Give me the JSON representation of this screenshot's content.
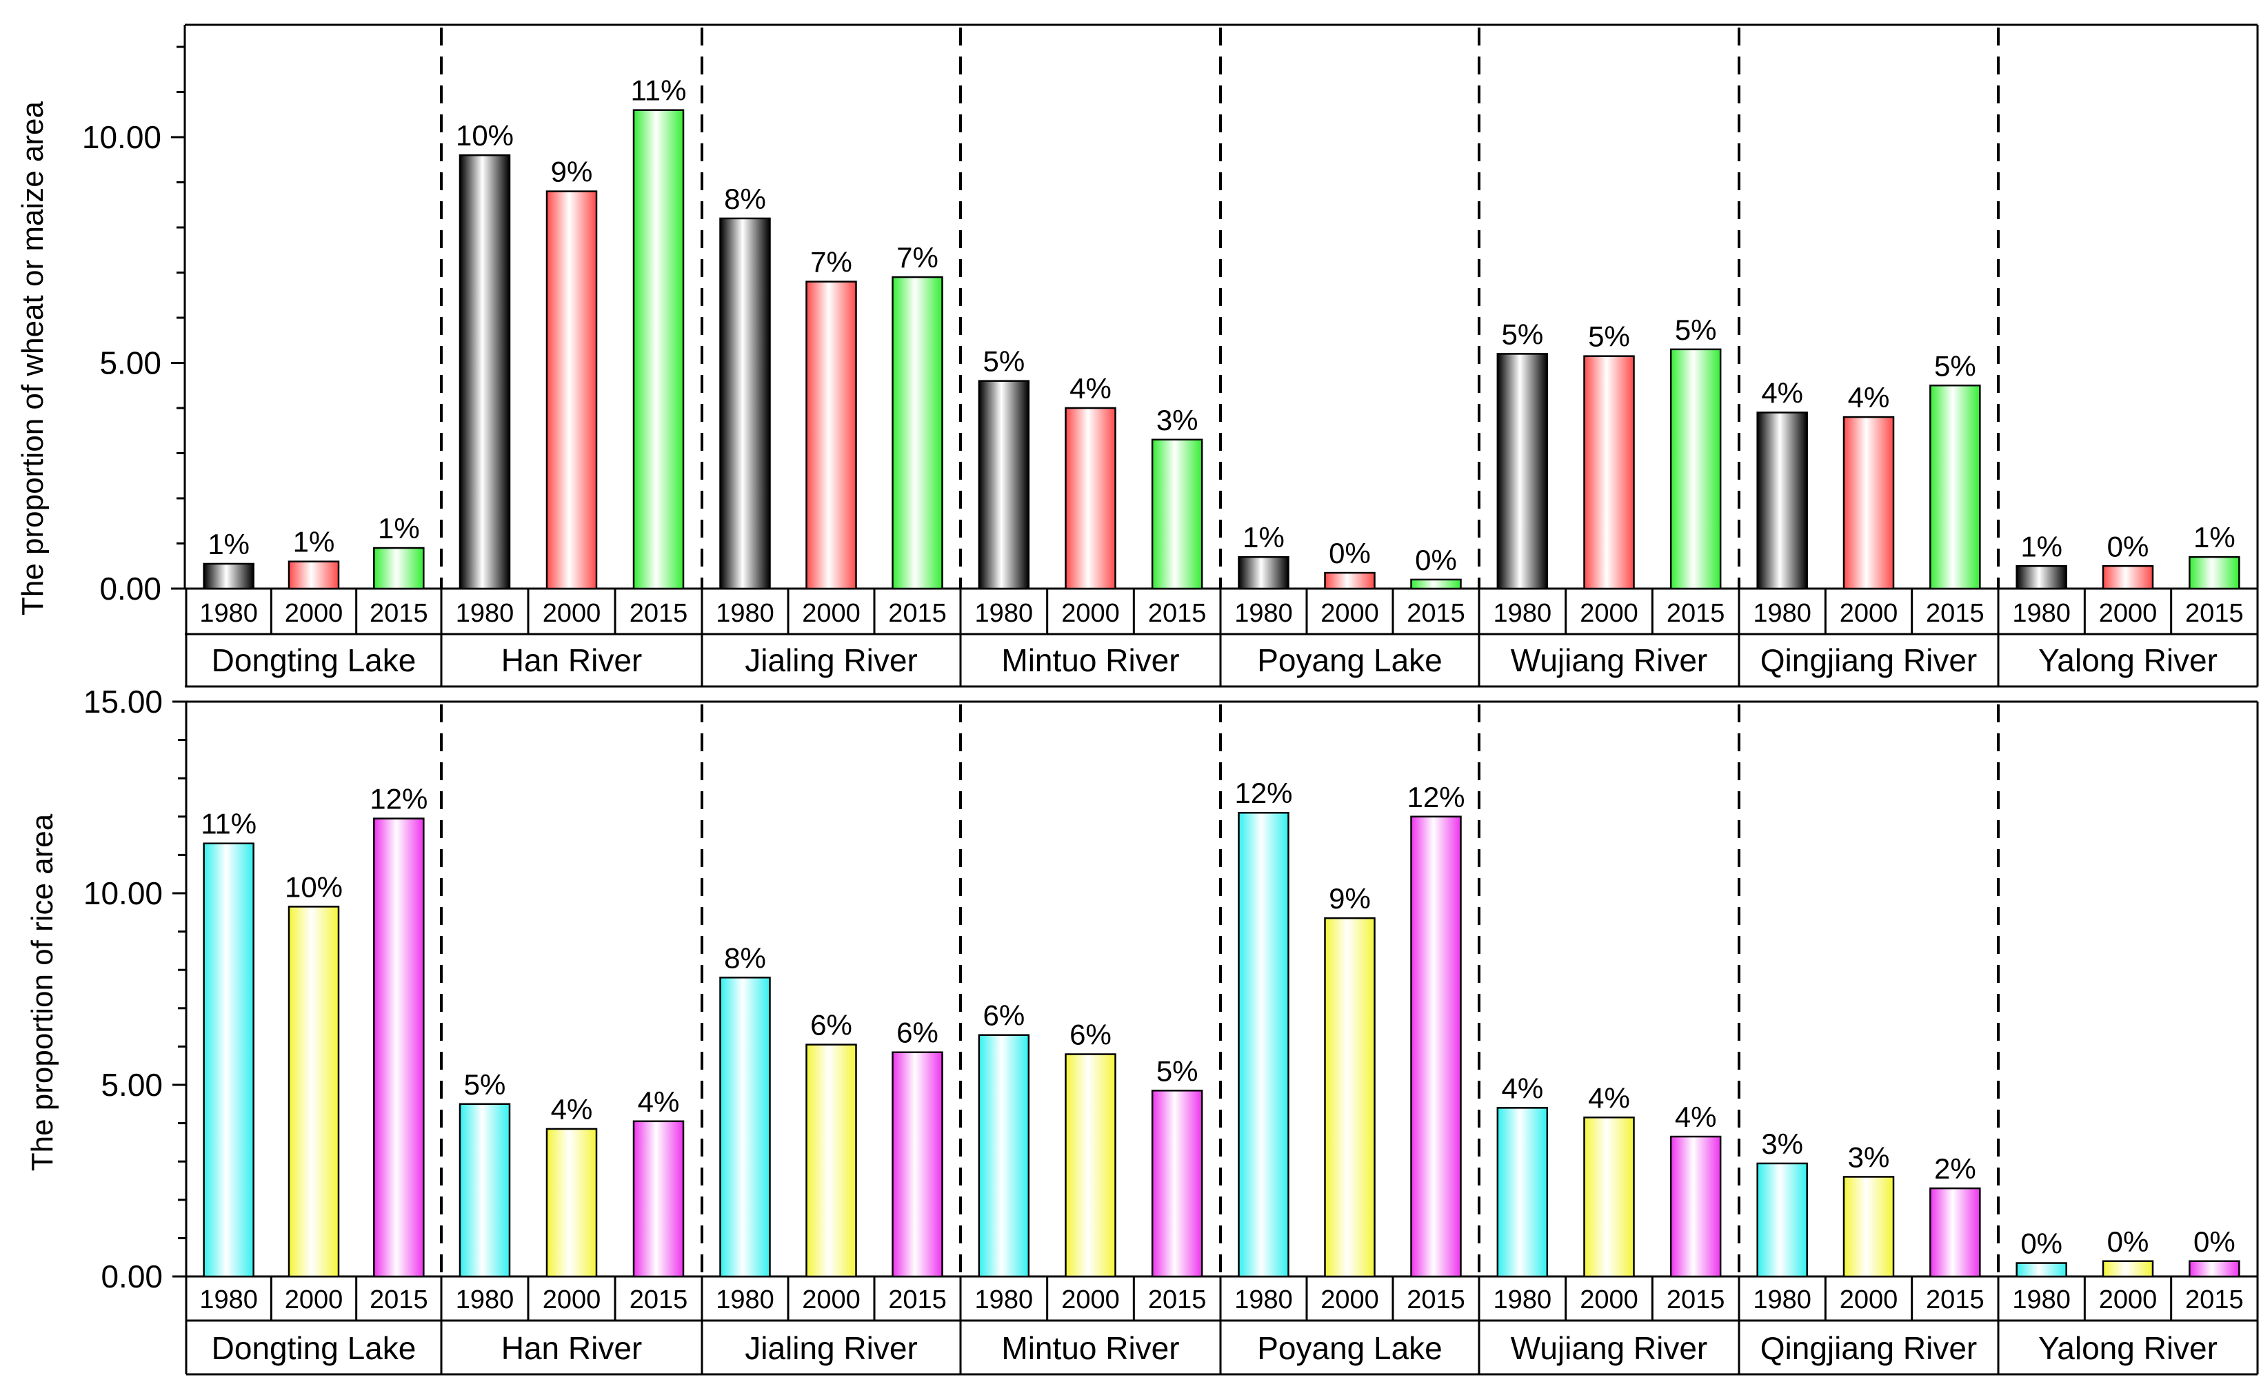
{
  "chart_data": [
    {
      "type": "bar",
      "ylabel": "The proportion of  wheat or maize area",
      "yticks": [
        "0.00",
        "5.00",
        "10.00"
      ],
      "ylim": [
        0,
        13
      ],
      "regions": [
        "Dongting Lake",
        "Han River",
        "Jialing River",
        "Mintuo River",
        "Poyang Lake",
        "Wujiang River",
        "Qingjiang River",
        "Yalong River"
      ],
      "years": [
        "1980",
        "2000",
        "2015"
      ],
      "colors": [
        "#000000",
        "#ff4a4a",
        "#33ee33"
      ],
      "values": [
        [
          0.55,
          0.6,
          0.9
        ],
        [
          9.6,
          8.8,
          10.6
        ],
        [
          8.2,
          6.8,
          6.9
        ],
        [
          4.6,
          4.0,
          3.3
        ],
        [
          0.7,
          0.35,
          0.2
        ],
        [
          5.2,
          5.15,
          5.3
        ],
        [
          3.9,
          3.8,
          4.5
        ],
        [
          0.5,
          0.5,
          0.7
        ]
      ],
      "labels": [
        [
          "1%",
          "1%",
          "1%"
        ],
        [
          "10%",
          "9%",
          "11%"
        ],
        [
          "8%",
          "7%",
          "7%"
        ],
        [
          "5%",
          "4%",
          "3%"
        ],
        [
          "1%",
          "0%",
          "0%"
        ],
        [
          "5%",
          "5%",
          "5%"
        ],
        [
          "4%",
          "4%",
          "5%"
        ],
        [
          "1%",
          "0%",
          "1%"
        ]
      ]
    },
    {
      "type": "bar",
      "ylabel": "The proportion of rice area",
      "yticks": [
        "0.00",
        "5.00",
        "10.00",
        "15.00"
      ],
      "ylim": [
        0,
        15
      ],
      "regions": [
        "Dongting Lake",
        "Han River",
        "Jialing River",
        "Mintuo River",
        "Poyang Lake",
        "Wujiang River",
        "Qingjiang River",
        "Yalong River"
      ],
      "years": [
        "1980",
        "2000",
        "2015"
      ],
      "colors": [
        "#33f0f0",
        "#f5f53a",
        "#ee33ee"
      ],
      "values": [
        [
          11.3,
          9.65,
          11.95
        ],
        [
          4.5,
          3.85,
          4.05
        ],
        [
          7.8,
          6.05,
          5.85
        ],
        [
          6.3,
          5.8,
          4.85
        ],
        [
          12.1,
          9.35,
          12.0
        ],
        [
          4.4,
          4.15,
          3.65
        ],
        [
          2.95,
          2.6,
          2.3
        ],
        [
          0.35,
          0.4,
          0.4
        ]
      ],
      "labels": [
        [
          "11%",
          "10%",
          "12%"
        ],
        [
          "5%",
          "4%",
          "4%"
        ],
        [
          "8%",
          "6%",
          "6%"
        ],
        [
          "6%",
          "6%",
          "5%"
        ],
        [
          "12%",
          "9%",
          "12%"
        ],
        [
          "4%",
          "4%",
          "4%"
        ],
        [
          "3%",
          "3%",
          "2%"
        ],
        [
          "0%",
          "0%",
          "0%"
        ]
      ]
    }
  ]
}
